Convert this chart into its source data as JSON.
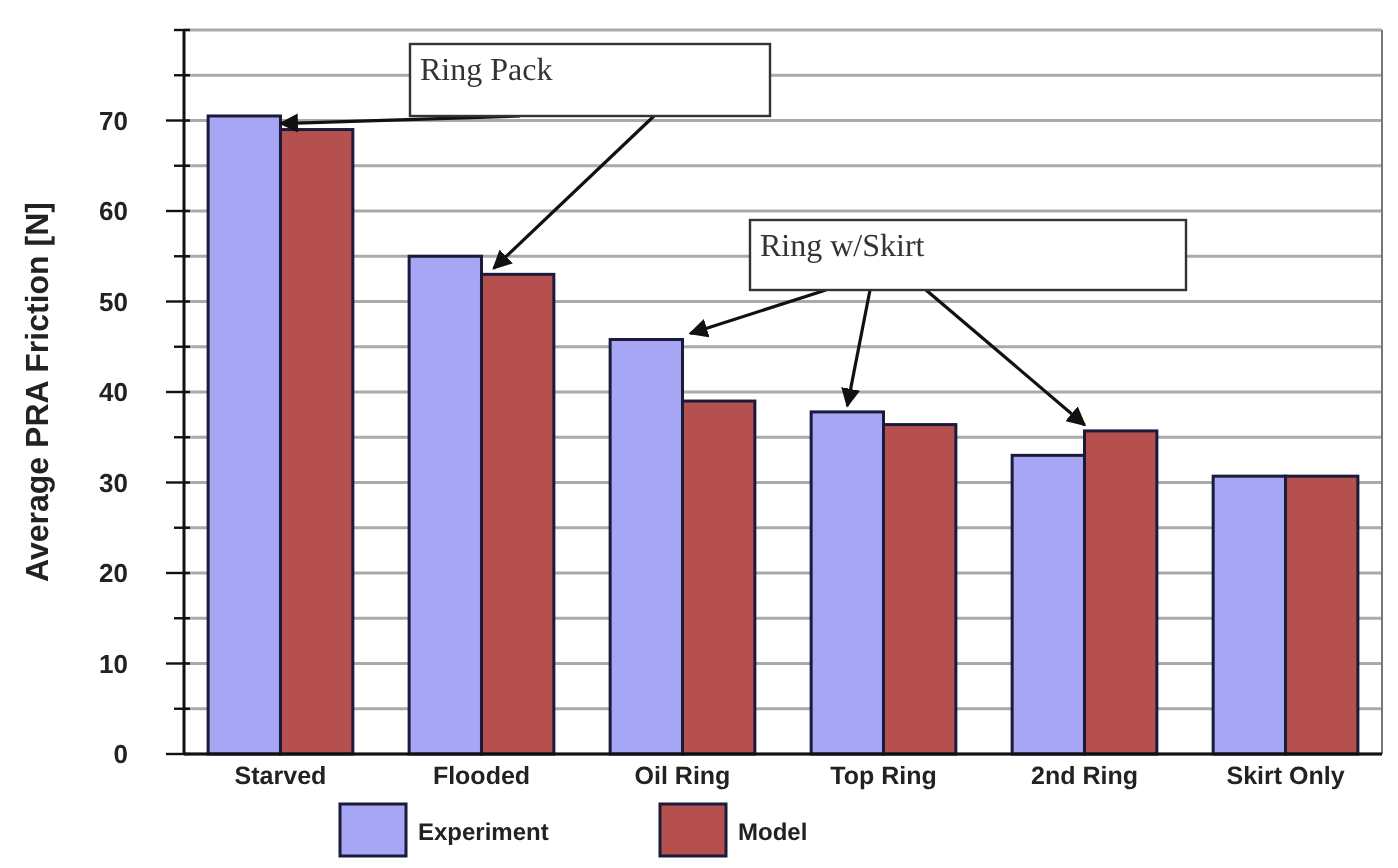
{
  "chart_data": {
    "type": "bar",
    "ylabel": "Average PRA Friction [N]",
    "categories": [
      "Starved",
      "Flooded",
      "Oil Ring",
      "Top Ring",
      "2nd Ring",
      "Skirt Only"
    ],
    "series": [
      {
        "name": "Experiment",
        "color": "#a6a6f5",
        "values": [
          70.5,
          55,
          45.8,
          37.8,
          33,
          30.7
        ]
      },
      {
        "name": "Model",
        "color": "#b5504f",
        "values": [
          69,
          53,
          39,
          36.4,
          35.7,
          30.7
        ]
      }
    ],
    "ylim": [
      0,
      80
    ],
    "yticks": [
      0,
      {
        "value": 5,
        "label": null
      },
      10,
      {
        "value": 15,
        "label": null
      },
      20,
      {
        "value": 25,
        "label": null
      },
      30,
      {
        "value": 35,
        "label": null
      },
      40,
      {
        "value": 45,
        "label": null
      },
      50,
      {
        "value": 55,
        "label": null
      },
      60,
      {
        "value": 65,
        "label": null
      },
      70,
      {
        "value": 75,
        "label": null
      },
      {
        "value": 80,
        "label": null
      }
    ],
    "grid": true,
    "legend": "bottom",
    "annotations": [
      {
        "text": "Ring Pack",
        "x": "Starved",
        "y": 69
      },
      {
        "text": "Ring w/Skirt",
        "x": "Oil Ring",
        "y": 45.8
      }
    ]
  }
}
